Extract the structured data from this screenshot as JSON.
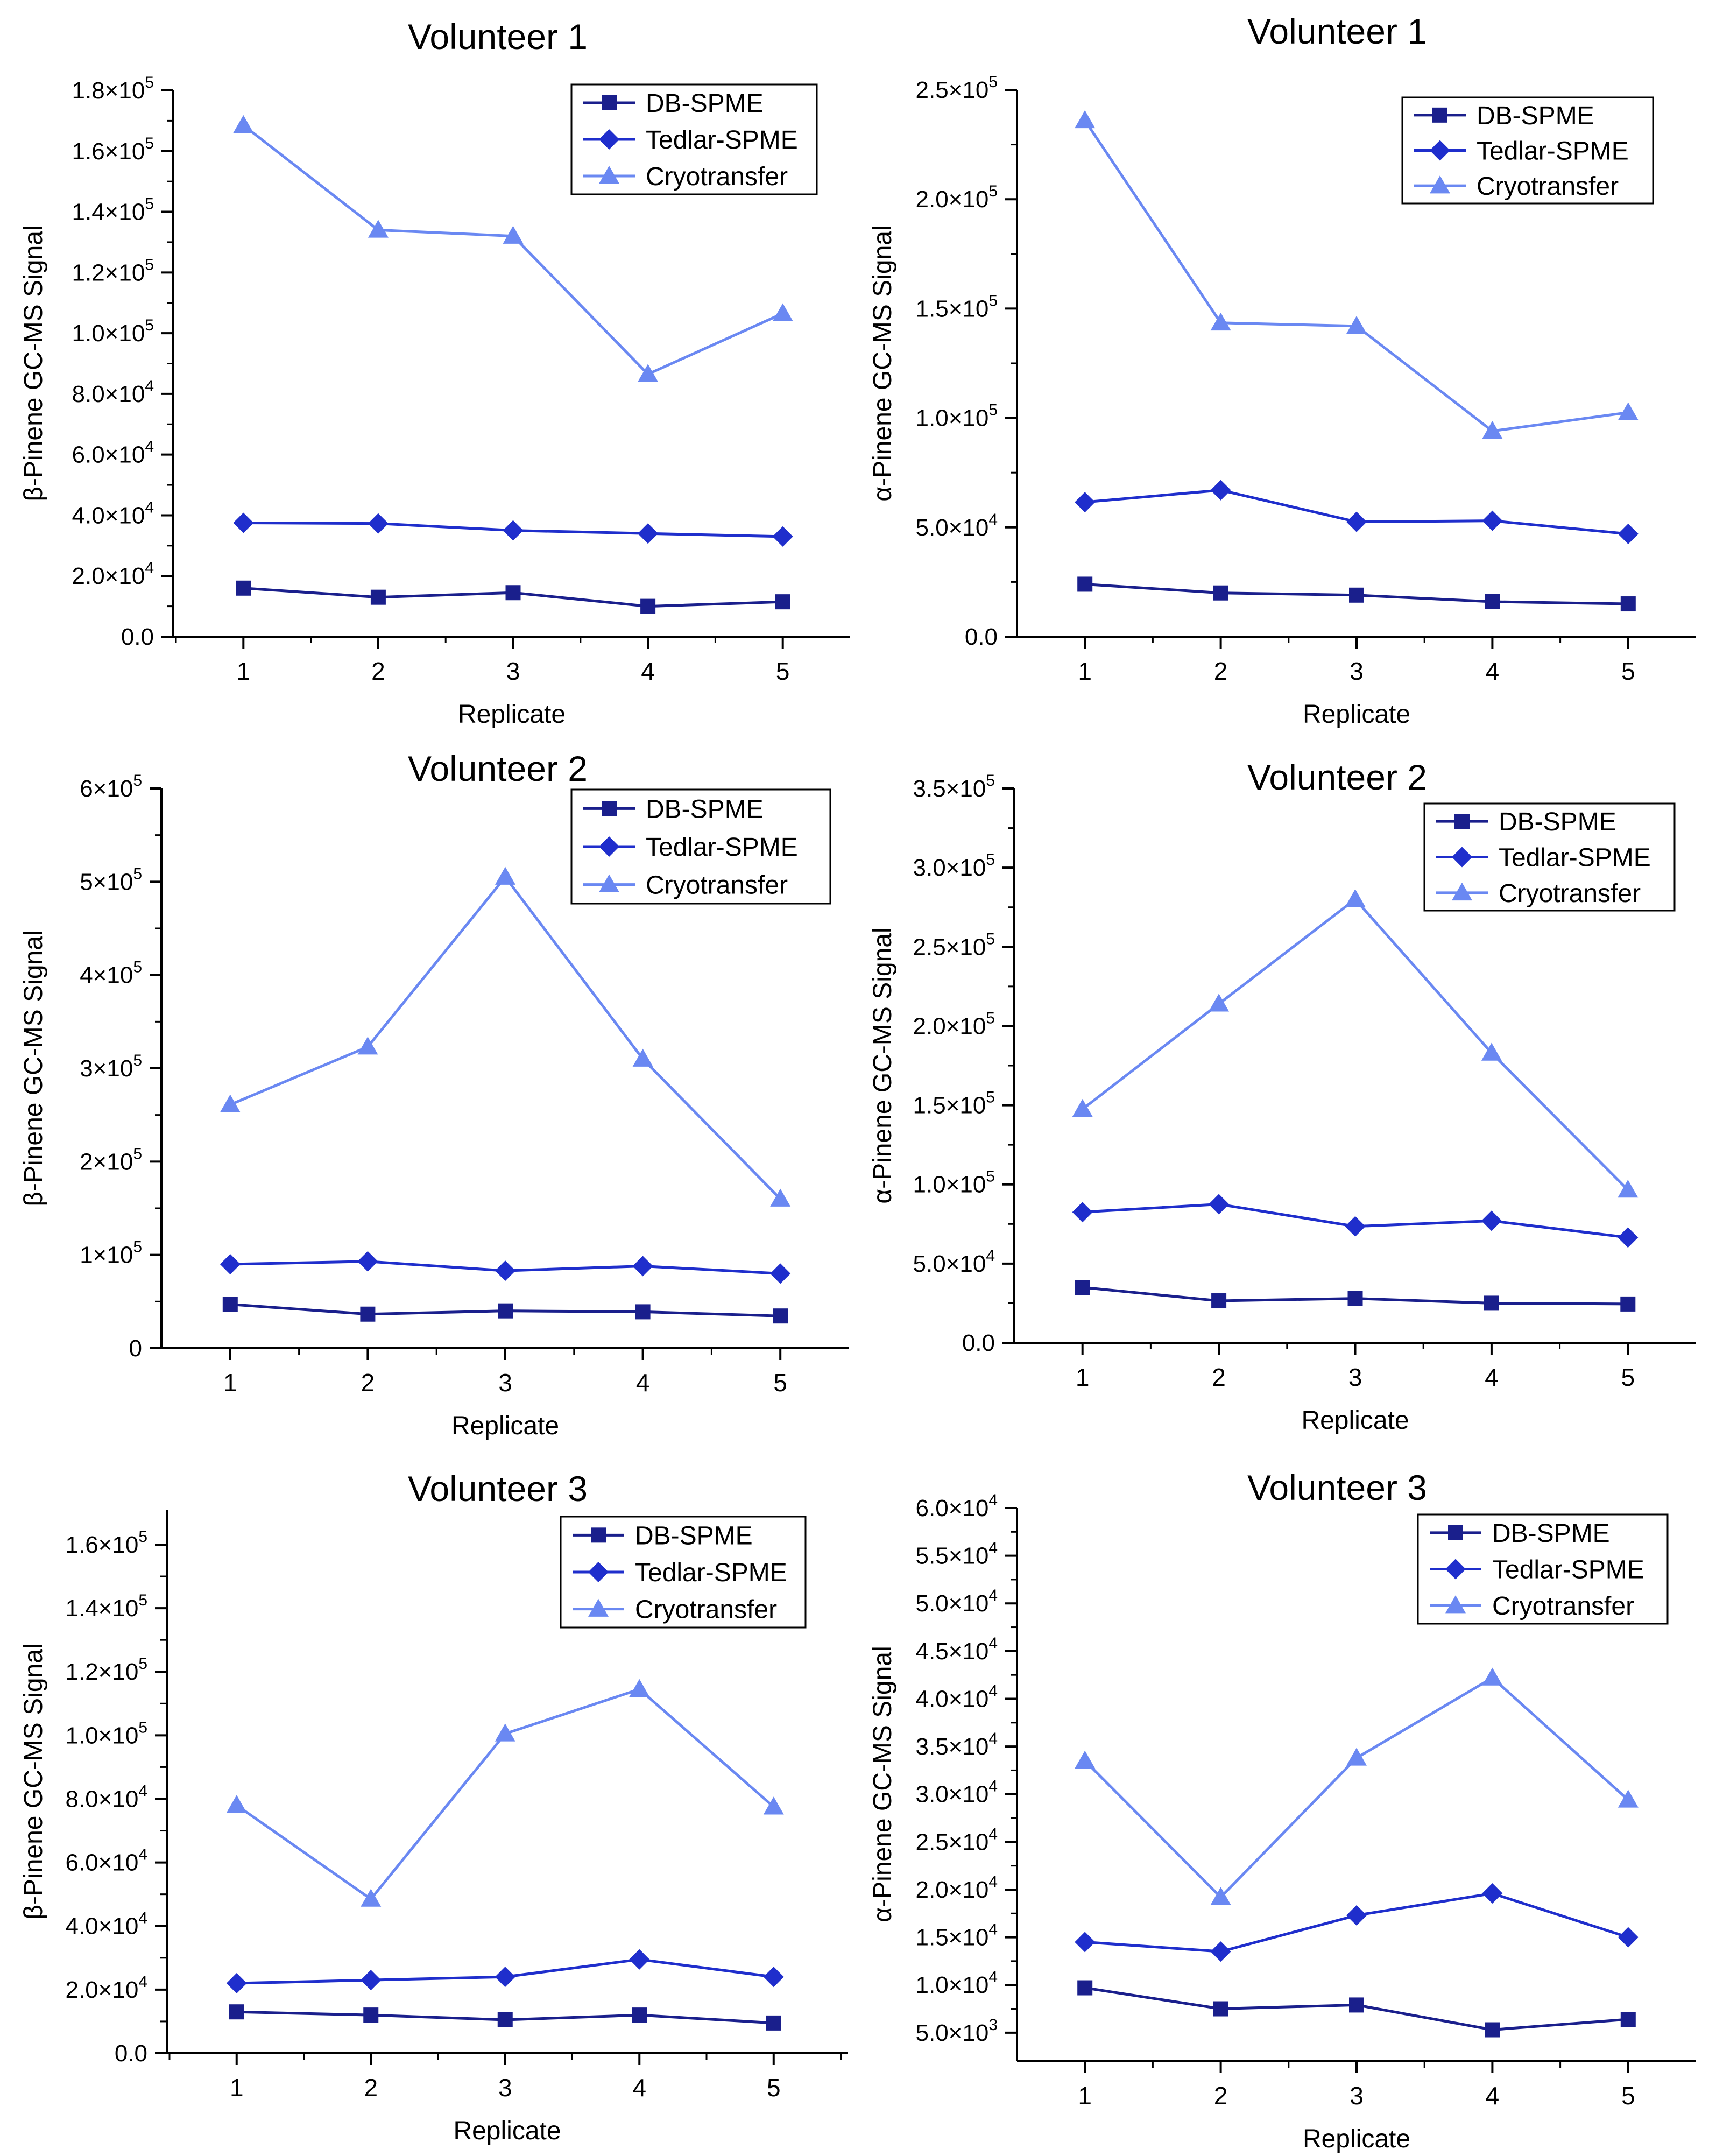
{
  "colors": {
    "db": "#1a1f8c",
    "tedlar": "#1f2ecc",
    "cryo": "#6a88f2",
    "axis": "#000000"
  },
  "chart_data": [
    {
      "type": "line",
      "title": "Volunteer 1",
      "xlabel": "Replicate",
      "ylabel": "β-Pinene GC-MS Signal",
      "x": [
        1,
        2,
        3,
        4,
        5
      ],
      "xticks": [
        {
          "v": 1,
          "label": "1"
        },
        {
          "v": 2,
          "label": "2"
        },
        {
          "v": 3,
          "label": "3"
        },
        {
          "v": 4,
          "label": "4"
        },
        {
          "v": 5,
          "label": "5"
        }
      ],
      "ylim": [
        0,
        180000
      ],
      "yticks": [
        {
          "v": 0,
          "base": "0.0",
          "exp": ""
        },
        {
          "v": 20000,
          "base": "2.0×10",
          "exp": "4"
        },
        {
          "v": 40000,
          "base": "4.0×10",
          "exp": "4"
        },
        {
          "v": 60000,
          "base": "6.0×10",
          "exp": "4"
        },
        {
          "v": 80000,
          "base": "8.0×10",
          "exp": "4"
        },
        {
          "v": 100000,
          "base": "1.0×10",
          "exp": "5"
        },
        {
          "v": 120000,
          "base": "1.2×10",
          "exp": "5"
        },
        {
          "v": 140000,
          "base": "1.4×10",
          "exp": "5"
        },
        {
          "v": 160000,
          "base": "1.6×10",
          "exp": "5"
        },
        {
          "v": 180000,
          "base": "1.8×10",
          "exp": "5"
        }
      ],
      "legend_position": "top-right",
      "series": [
        {
          "name": "DB-SPME",
          "marker": "square",
          "values": [
            16000,
            13000,
            14500,
            10000,
            11500
          ]
        },
        {
          "name": "Tedlar-SPME",
          "marker": "diamond",
          "values": [
            37500,
            37300,
            35000,
            34000,
            33000
          ]
        },
        {
          "name": "Cryotransfer",
          "marker": "triangle",
          "values": [
            168500,
            134000,
            132000,
            86500,
            106500
          ]
        }
      ]
    },
    {
      "type": "line",
      "title": "Volunteer 1",
      "xlabel": "Replicate",
      "ylabel": "α-Pinene GC-MS Signal",
      "x": [
        1,
        2,
        3,
        4,
        5
      ],
      "xticks": [
        {
          "v": 1,
          "label": "1"
        },
        {
          "v": 2,
          "label": "2"
        },
        {
          "v": 3,
          "label": "3"
        },
        {
          "v": 4,
          "label": "4"
        },
        {
          "v": 5,
          "label": "5"
        }
      ],
      "ylim": [
        0,
        250000
      ],
      "yticks": [
        {
          "v": 0,
          "base": "0.0",
          "exp": ""
        },
        {
          "v": 50000,
          "base": "5.0×10",
          "exp": "4"
        },
        {
          "v": 100000,
          "base": "1.0×10",
          "exp": "5"
        },
        {
          "v": 150000,
          "base": "1.5×10",
          "exp": "5"
        },
        {
          "v": 200000,
          "base": "2.0×10",
          "exp": "5"
        },
        {
          "v": 250000,
          "base": "2.5×10",
          "exp": "5"
        }
      ],
      "legend_position": "top-right",
      "series": [
        {
          "name": "DB-SPME",
          "marker": "square",
          "values": [
            24000,
            20000,
            19000,
            16000,
            15000
          ]
        },
        {
          "name": "Tedlar-SPME",
          "marker": "diamond",
          "values": [
            61500,
            67000,
            52500,
            53000,
            47000
          ]
        },
        {
          "name": "Cryotransfer",
          "marker": "triangle",
          "values": [
            236000,
            143500,
            142000,
            94000,
            102500
          ]
        }
      ]
    },
    {
      "type": "line",
      "title": "Volunteer 2",
      "xlabel": "Replicate",
      "ylabel": "β-Pinene GC-MS Signal",
      "x": [
        1,
        2,
        3,
        4,
        5
      ],
      "xticks": [
        {
          "v": 1,
          "label": "1"
        },
        {
          "v": 2,
          "label": "2"
        },
        {
          "v": 3,
          "label": "3"
        },
        {
          "v": 4,
          "label": "4"
        },
        {
          "v": 5,
          "label": "5"
        }
      ],
      "ylim": [
        0,
        600000
      ],
      "yticks": [
        {
          "v": 0,
          "base": "0",
          "exp": ""
        },
        {
          "v": 100000,
          "base": "1×10",
          "exp": "5"
        },
        {
          "v": 200000,
          "base": "2×10",
          "exp": "5"
        },
        {
          "v": 300000,
          "base": "3×10",
          "exp": "5"
        },
        {
          "v": 400000,
          "base": "4×10",
          "exp": "5"
        },
        {
          "v": 500000,
          "base": "5×10",
          "exp": "5"
        },
        {
          "v": 600000,
          "base": "6×10",
          "exp": "5"
        }
      ],
      "legend_position": "top-right",
      "series": [
        {
          "name": "DB-SPME",
          "marker": "square",
          "values": [
            47000,
            36500,
            40000,
            39000,
            34500
          ]
        },
        {
          "name": "Tedlar-SPME",
          "marker": "diamond",
          "values": [
            90000,
            93000,
            83000,
            88000,
            80000
          ]
        },
        {
          "name": "Cryotransfer",
          "marker": "triangle",
          "values": [
            261000,
            323000,
            505000,
            310000,
            160000
          ]
        }
      ]
    },
    {
      "type": "line",
      "title": "Volunteer 2",
      "xlabel": "Replicate",
      "ylabel": "α-Pinene GC-MS Signal",
      "x": [
        1,
        2,
        3,
        4,
        5
      ],
      "xticks": [
        {
          "v": 1,
          "label": "1"
        },
        {
          "v": 2,
          "label": "2"
        },
        {
          "v": 3,
          "label": "3"
        },
        {
          "v": 4,
          "label": "4"
        },
        {
          "v": 5,
          "label": "5"
        }
      ],
      "ylim": [
        0,
        350000
      ],
      "yticks": [
        {
          "v": 0,
          "base": "0.0",
          "exp": ""
        },
        {
          "v": 50000,
          "base": "5.0×10",
          "exp": "4"
        },
        {
          "v": 100000,
          "base": "1.0×10",
          "exp": "5"
        },
        {
          "v": 150000,
          "base": "1.5×10",
          "exp": "5"
        },
        {
          "v": 200000,
          "base": "2.0×10",
          "exp": "5"
        },
        {
          "v": 250000,
          "base": "2.5×10",
          "exp": "5"
        },
        {
          "v": 300000,
          "base": "3.0×10",
          "exp": "5"
        },
        {
          "v": 350000,
          "base": "3.5×10",
          "exp": "5"
        }
      ],
      "legend_position": "top-right",
      "series": [
        {
          "name": "DB-SPME",
          "marker": "square",
          "values": [
            35000,
            26500,
            28000,
            25000,
            24500
          ]
        },
        {
          "name": "Tedlar-SPME",
          "marker": "diamond",
          "values": [
            82500,
            87500,
            73500,
            77000,
            66500
          ]
        },
        {
          "name": "Cryotransfer",
          "marker": "triangle",
          "values": [
            147500,
            214000,
            280000,
            183000,
            96500
          ]
        }
      ]
    },
    {
      "type": "line",
      "title": "Volunteer 3",
      "xlabel": "Replicate",
      "ylabel": "β-Pinene GC-MS Signal",
      "x": [
        1,
        2,
        3,
        4,
        5
      ],
      "xticks": [
        {
          "v": 1,
          "label": "1"
        },
        {
          "v": 2,
          "label": "2"
        },
        {
          "v": 3,
          "label": "3"
        },
        {
          "v": 4,
          "label": "4"
        },
        {
          "v": 5,
          "label": "5"
        }
      ],
      "ylim": [
        0,
        171000
      ],
      "yticks": [
        {
          "v": 0,
          "base": "0.0",
          "exp": ""
        },
        {
          "v": 20000,
          "base": "2.0×10",
          "exp": "4"
        },
        {
          "v": 40000,
          "base": "4.0×10",
          "exp": "4"
        },
        {
          "v": 60000,
          "base": "6.0×10",
          "exp": "4"
        },
        {
          "v": 80000,
          "base": "8.0×10",
          "exp": "4"
        },
        {
          "v": 100000,
          "base": "1.0×10",
          "exp": "5"
        },
        {
          "v": 120000,
          "base": "1.2×10",
          "exp": "5"
        },
        {
          "v": 140000,
          "base": "1.4×10",
          "exp": "5"
        },
        {
          "v": 160000,
          "base": "1.6×10",
          "exp": "5"
        }
      ],
      "legend_position": "top-right",
      "series": [
        {
          "name": "DB-SPME",
          "marker": "square",
          "values": [
            13000,
            12000,
            10500,
            12000,
            9500
          ]
        },
        {
          "name": "Tedlar-SPME",
          "marker": "diamond",
          "values": [
            22000,
            23000,
            24000,
            29500,
            24000
          ]
        },
        {
          "name": "Cryotransfer",
          "marker": "triangle",
          "values": [
            78000,
            48500,
            100500,
            114500,
            77500
          ]
        }
      ]
    },
    {
      "type": "line",
      "title": "Volunteer 3",
      "xlabel": "Replicate",
      "ylabel": "α-Pinene GC-MS Signal",
      "x": [
        1,
        2,
        3,
        4,
        5
      ],
      "xticks": [
        {
          "v": 1,
          "label": "1"
        },
        {
          "v": 2,
          "label": "2"
        },
        {
          "v": 3,
          "label": "3"
        },
        {
          "v": 4,
          "label": "4"
        },
        {
          "v": 5,
          "label": "5"
        }
      ],
      "ylim": [
        2000,
        60000
      ],
      "yticks": [
        {
          "v": 5000,
          "base": "5.0×10",
          "exp": "3"
        },
        {
          "v": 10000,
          "base": "1.0×10",
          "exp": "4"
        },
        {
          "v": 15000,
          "base": "1.5×10",
          "exp": "4"
        },
        {
          "v": 20000,
          "base": "2.0×10",
          "exp": "4"
        },
        {
          "v": 25000,
          "base": "2.5×10",
          "exp": "4"
        },
        {
          "v": 30000,
          "base": "3.0×10",
          "exp": "4"
        },
        {
          "v": 35000,
          "base": "3.5×10",
          "exp": "4"
        },
        {
          "v": 40000,
          "base": "4.0×10",
          "exp": "4"
        },
        {
          "v": 45000,
          "base": "4.5×10",
          "exp": "4"
        },
        {
          "v": 50000,
          "base": "5.0×10",
          "exp": "4"
        },
        {
          "v": 55000,
          "base": "5.5×10",
          "exp": "4"
        },
        {
          "v": 60000,
          "base": "6.0×10",
          "exp": "4"
        }
      ],
      "legend_position": "top-right",
      "series": [
        {
          "name": "DB-SPME",
          "marker": "square",
          "values": [
            9700,
            7500,
            7900,
            5300,
            6400
          ]
        },
        {
          "name": "Tedlar-SPME",
          "marker": "diamond",
          "values": [
            14500,
            13500,
            17300,
            19600,
            15000
          ]
        },
        {
          "name": "Cryotransfer",
          "marker": "triangle",
          "values": [
            33500,
            19200,
            33800,
            42200,
            29400
          ]
        }
      ]
    }
  ]
}
